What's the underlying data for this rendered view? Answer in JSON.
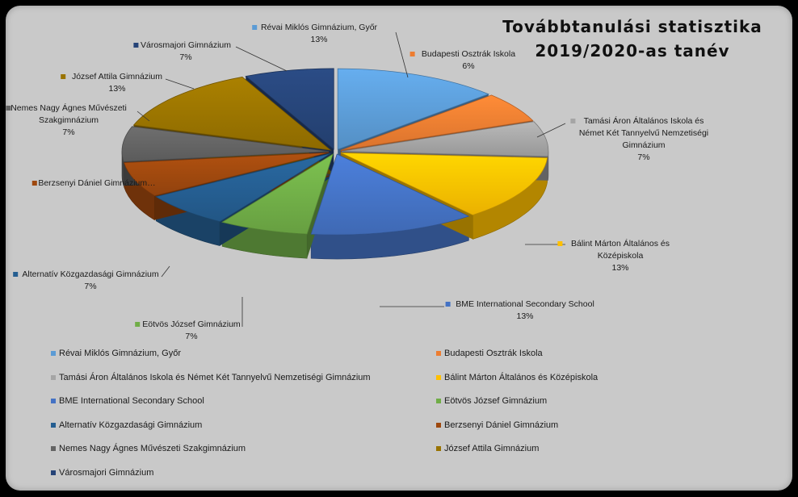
{
  "chart_data": {
    "type": "pie",
    "title": "Továbbtanulási statisztika\n2019/2020-as tanév",
    "slices": [
      {
        "label": "Révai Miklós Gimnázium, Győr",
        "value": 13,
        "display_label": "Révai Miklós Gimnázium, Győr",
        "display_pct": "13%",
        "color": "#5b9bd5"
      },
      {
        "label": "Budapesti Osztrák Iskola",
        "value": 6,
        "display_label": "Budapesti Osztrák Iskola",
        "display_pct": "6%",
        "color": "#ed7d31"
      },
      {
        "label": "Tamási Áron Általános Iskola és Német Két Tannyelvű Nemzetiségi Gimnázium",
        "value": 7,
        "display_label": "Tamási Áron Általános Iskola és Német Két Tannyelvű Nemzetiségi Gimnázium",
        "display_pct": "7%",
        "color": "#a5a5a5"
      },
      {
        "label": "Bálint Márton Általános és Középiskola",
        "value": 13,
        "display_label": "Bálint Márton Általános és Középiskola",
        "display_pct": "13%",
        "color": "#ffc000"
      },
      {
        "label": "BME International Secondary School",
        "value": 13,
        "display_label": "BME International Secondary School",
        "display_pct": "13%",
        "color": "#4472c4"
      },
      {
        "label": "Eötvös József Gimnázium",
        "value": 7,
        "display_label": "Eötvös József Gimnázium",
        "display_pct": "7%",
        "color": "#70ad47"
      },
      {
        "label": "Alternatív Közgazdasági Gimnázium",
        "value": 7,
        "display_label": "Alternatív Közgazdasági Gimnázium",
        "display_pct": "7%",
        "color": "#255e91"
      },
      {
        "label": "Berzsenyi Dániel Gimnázium",
        "value": 7,
        "display_label": "Berzsenyi Dániel Gimnázium…",
        "display_pct": "",
        "color": "#9e480e"
      },
      {
        "label": "Nemes Nagy Ágnes Művészeti Szakgimnázium",
        "value": 7,
        "display_label": "Nemes Nagy Ágnes Művészeti Szakgimnázium",
        "display_pct": "7%",
        "color": "#636363"
      },
      {
        "label": "József Attila Gimnázium",
        "value": 13,
        "display_label": "József Attila Gimnázium",
        "display_pct": "13%",
        "color": "#997300"
      },
      {
        "label": "Városmajori Gimnázium",
        "value": 7,
        "display_label": "Városmajori Gimnázium",
        "display_pct": "7%",
        "color": "#264478"
      }
    ],
    "legend_position": "bottom",
    "style": "3d-exploded"
  }
}
